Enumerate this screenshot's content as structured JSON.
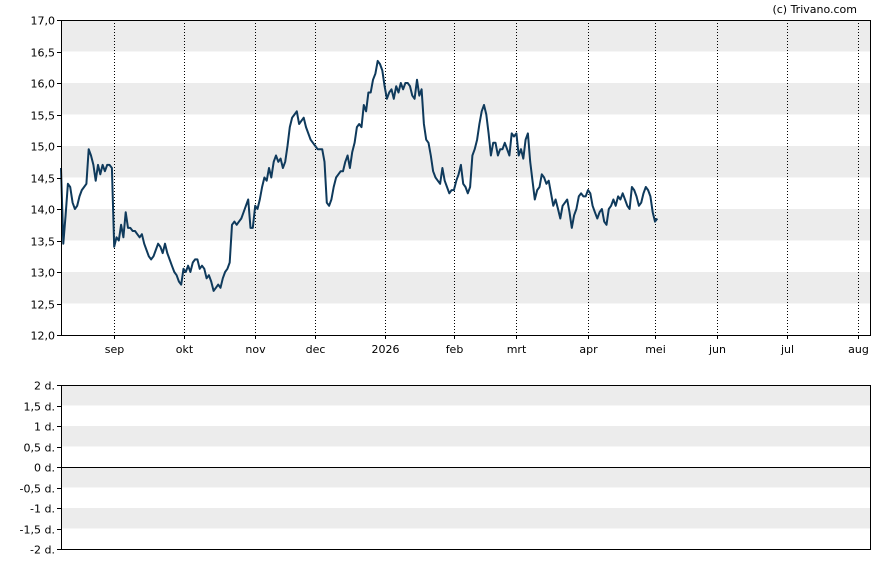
{
  "copyright": "(c) Trivano.com",
  "colors": {
    "line": "#0f3a5c",
    "band": "#ececec",
    "grid": "#000000",
    "axis": "#000000",
    "background": "#ffffff"
  },
  "chart_data": [
    {
      "type": "line",
      "title": "",
      "xlabel": "",
      "ylabel": "",
      "ylim": [
        12.0,
        17.0
      ],
      "y_ticks": [
        "12,0",
        "12,5",
        "13,0",
        "13,5",
        "14,0",
        "14,5",
        "15,0",
        "15,5",
        "16,0",
        "16,5",
        "17,0"
      ],
      "x_tick_labels": [
        "sep",
        "okt",
        "nov",
        "dec",
        "2026",
        "feb",
        "mrt",
        "apr",
        "mei",
        "jun",
        "jul",
        "aug"
      ],
      "x_tick_days": [
        23,
        53,
        84,
        110,
        140,
        170,
        197,
        228,
        257,
        284,
        314,
        345
      ],
      "x_range_days": [
        0,
        350
      ],
      "grid": "vertical dotted at month starts, alternating horizontal bands",
      "series": [
        {
          "points": [
            [
              0,
              14.65
            ],
            [
              1,
              13.45
            ],
            [
              2,
              13.9
            ],
            [
              3,
              14.4
            ],
            [
              4,
              14.35
            ],
            [
              5,
              14.1
            ],
            [
              6,
              14.0
            ],
            [
              7,
              14.05
            ],
            [
              8,
              14.2
            ],
            [
              9,
              14.3
            ],
            [
              10,
              14.35
            ],
            [
              11,
              14.4
            ],
            [
              12,
              14.95
            ],
            [
              13,
              14.85
            ],
            [
              14,
              14.7
            ],
            [
              15,
              14.45
            ],
            [
              16,
              14.7
            ],
            [
              17,
              14.55
            ],
            [
              18,
              14.7
            ],
            [
              19,
              14.6
            ],
            [
              20,
              14.7
            ],
            [
              21,
              14.7
            ],
            [
              22,
              14.65
            ],
            [
              23,
              13.4
            ],
            [
              24,
              13.55
            ],
            [
              25,
              13.5
            ],
            [
              26,
              13.75
            ],
            [
              27,
              13.55
            ],
            [
              28,
              13.95
            ],
            [
              29,
              13.7
            ],
            [
              30,
              13.7
            ],
            [
              31,
              13.65
            ],
            [
              32,
              13.65
            ],
            [
              33,
              13.6
            ],
            [
              34,
              13.55
            ],
            [
              35,
              13.6
            ],
            [
              36,
              13.45
            ],
            [
              37,
              13.35
            ],
            [
              38,
              13.25
            ],
            [
              39,
              13.2
            ],
            [
              40,
              13.25
            ],
            [
              41,
              13.35
            ],
            [
              42,
              13.45
            ],
            [
              43,
              13.4
            ],
            [
              44,
              13.3
            ],
            [
              45,
              13.45
            ],
            [
              46,
              13.3
            ],
            [
              47,
              13.2
            ],
            [
              48,
              13.1
            ],
            [
              49,
              13.0
            ],
            [
              50,
              12.95
            ],
            [
              51,
              12.85
            ],
            [
              52,
              12.8
            ],
            [
              53,
              13.05
            ],
            [
              54,
              13.0
            ],
            [
              55,
              13.1
            ],
            [
              56,
              13.0
            ],
            [
              57,
              13.15
            ],
            [
              58,
              13.2
            ],
            [
              59,
              13.2
            ],
            [
              60,
              13.05
            ],
            [
              61,
              13.1
            ],
            [
              62,
              13.05
            ],
            [
              63,
              12.9
            ],
            [
              64,
              12.95
            ],
            [
              65,
              12.85
            ],
            [
              66,
              12.7
            ],
            [
              67,
              12.75
            ],
            [
              68,
              12.8
            ],
            [
              69,
              12.75
            ],
            [
              70,
              12.9
            ],
            [
              71,
              13.0
            ],
            [
              72,
              13.05
            ],
            [
              73,
              13.15
            ],
            [
              74,
              13.75
            ],
            [
              75,
              13.8
            ],
            [
              76,
              13.75
            ],
            [
              77,
              13.8
            ],
            [
              78,
              13.85
            ],
            [
              79,
              13.95
            ],
            [
              80,
              14.05
            ],
            [
              81,
              14.15
            ],
            [
              82,
              13.7
            ],
            [
              83,
              13.7
            ],
            [
              84,
              14.05
            ],
            [
              85,
              14.0
            ],
            [
              86,
              14.15
            ],
            [
              87,
              14.35
            ],
            [
              88,
              14.5
            ],
            [
              89,
              14.45
            ],
            [
              90,
              14.65
            ],
            [
              91,
              14.5
            ],
            [
              92,
              14.75
            ],
            [
              93,
              14.85
            ],
            [
              94,
              14.75
            ],
            [
              95,
              14.8
            ],
            [
              96,
              14.65
            ],
            [
              97,
              14.75
            ],
            [
              98,
              15.0
            ],
            [
              99,
              15.3
            ],
            [
              100,
              15.45
            ],
            [
              101,
              15.5
            ],
            [
              102,
              15.55
            ],
            [
              103,
              15.35
            ],
            [
              104,
              15.4
            ],
            [
              105,
              15.45
            ],
            [
              106,
              15.3
            ],
            [
              107,
              15.2
            ],
            [
              108,
              15.1
            ],
            [
              109,
              15.05
            ],
            [
              110,
              15.0
            ],
            [
              111,
              14.95
            ],
            [
              112,
              14.95
            ],
            [
              113,
              14.95
            ],
            [
              114,
              14.75
            ],
            [
              115,
              14.1
            ],
            [
              116,
              14.05
            ],
            [
              117,
              14.15
            ],
            [
              118,
              14.35
            ],
            [
              119,
              14.5
            ],
            [
              120,
              14.55
            ],
            [
              121,
              14.6
            ],
            [
              122,
              14.6
            ],
            [
              123,
              14.75
            ],
            [
              124,
              14.85
            ],
            [
              125,
              14.65
            ],
            [
              126,
              14.9
            ],
            [
              127,
              15.05
            ],
            [
              128,
              15.3
            ],
            [
              129,
              15.35
            ],
            [
              130,
              15.3
            ],
            [
              131,
              15.65
            ],
            [
              132,
              15.55
            ],
            [
              133,
              15.85
            ],
            [
              134,
              15.85
            ],
            [
              135,
              16.05
            ],
            [
              136,
              16.15
            ],
            [
              137,
              16.35
            ],
            [
              138,
              16.3
            ],
            [
              139,
              16.2
            ],
            [
              140,
              15.95
            ],
            [
              141,
              15.75
            ],
            [
              142,
              15.85
            ],
            [
              143,
              15.9
            ],
            [
              144,
              15.75
            ],
            [
              145,
              15.95
            ],
            [
              146,
              15.85
            ],
            [
              147,
              16.0
            ],
            [
              148,
              15.9
            ],
            [
              149,
              16.0
            ],
            [
              150,
              16.0
            ],
            [
              151,
              15.95
            ],
            [
              152,
              15.8
            ],
            [
              153,
              15.75
            ],
            [
              154,
              16.05
            ],
            [
              155,
              15.8
            ],
            [
              156,
              15.9
            ],
            [
              157,
              15.35
            ],
            [
              158,
              15.1
            ],
            [
              159,
              15.05
            ],
            [
              160,
              14.85
            ],
            [
              161,
              14.6
            ],
            [
              162,
              14.5
            ],
            [
              163,
              14.45
            ],
            [
              164,
              14.4
            ],
            [
              165,
              14.65
            ],
            [
              166,
              14.45
            ],
            [
              167,
              14.35
            ],
            [
              168,
              14.25
            ],
            [
              169,
              14.3
            ],
            [
              170,
              14.3
            ],
            [
              171,
              14.45
            ],
            [
              172,
              14.55
            ],
            [
              173,
              14.7
            ],
            [
              174,
              14.4
            ],
            [
              175,
              14.35
            ],
            [
              176,
              14.25
            ],
            [
              177,
              14.35
            ],
            [
              178,
              14.85
            ],
            [
              179,
              14.95
            ],
            [
              180,
              15.1
            ],
            [
              181,
              15.35
            ],
            [
              182,
              15.55
            ],
            [
              183,
              15.65
            ],
            [
              184,
              15.5
            ],
            [
              185,
              15.2
            ],
            [
              186,
              14.85
            ],
            [
              187,
              15.05
            ],
            [
              188,
              15.05
            ],
            [
              189,
              14.85
            ],
            [
              190,
              14.95
            ],
            [
              191,
              14.95
            ],
            [
              192,
              15.05
            ],
            [
              193,
              14.95
            ],
            [
              194,
              14.85
            ],
            [
              195,
              15.2
            ],
            [
              196,
              15.15
            ],
            [
              197,
              15.2
            ],
            [
              198,
              14.85
            ],
            [
              199,
              14.95
            ],
            [
              200,
              14.8
            ],
            [
              201,
              15.1
            ],
            [
              202,
              15.2
            ],
            [
              203,
              14.75
            ],
            [
              204,
              14.45
            ],
            [
              205,
              14.15
            ],
            [
              206,
              14.3
            ],
            [
              207,
              14.35
            ],
            [
              208,
              14.55
            ],
            [
              209,
              14.5
            ],
            [
              210,
              14.4
            ],
            [
              211,
              14.45
            ],
            [
              212,
              14.25
            ],
            [
              213,
              14.05
            ],
            [
              214,
              14.15
            ],
            [
              215,
              14.0
            ],
            [
              216,
              13.85
            ],
            [
              217,
              14.05
            ],
            [
              218,
              14.1
            ],
            [
              219,
              14.15
            ],
            [
              220,
              13.95
            ],
            [
              221,
              13.7
            ],
            [
              222,
              13.9
            ],
            [
              223,
              14.0
            ],
            [
              224,
              14.2
            ],
            [
              225,
              14.25
            ],
            [
              226,
              14.2
            ],
            [
              227,
              14.2
            ],
            [
              228,
              14.3
            ],
            [
              229,
              14.25
            ],
            [
              230,
              14.05
            ],
            [
              231,
              13.95
            ],
            [
              232,
              13.85
            ],
            [
              233,
              13.95
            ],
            [
              234,
              14.0
            ],
            [
              235,
              13.8
            ],
            [
              236,
              13.75
            ],
            [
              237,
              14.0
            ],
            [
              238,
              14.05
            ],
            [
              239,
              14.15
            ],
            [
              240,
              14.05
            ],
            [
              241,
              14.2
            ],
            [
              242,
              14.15
            ],
            [
              243,
              14.25
            ],
            [
              244,
              14.15
            ],
            [
              245,
              14.05
            ],
            [
              246,
              14.0
            ],
            [
              247,
              14.35
            ],
            [
              248,
              14.3
            ],
            [
              249,
              14.2
            ],
            [
              250,
              14.05
            ],
            [
              251,
              14.1
            ],
            [
              252,
              14.25
            ],
            [
              253,
              14.35
            ],
            [
              254,
              14.3
            ],
            [
              255,
              14.2
            ],
            [
              256,
              13.95
            ],
            [
              257,
              13.8
            ],
            [
              258,
              13.85
            ]
          ]
        }
      ]
    },
    {
      "type": "line",
      "title": "",
      "xlabel": "",
      "ylabel": "",
      "ylim": [
        -2,
        2
      ],
      "y_ticks": [
        "-2 d.",
        "-1,5 d.",
        "-1 d.",
        "-0,5 d.",
        "0 d.",
        "0,5 d.",
        "1 d.",
        "1,5 d.",
        "2 d."
      ],
      "reference_line": 0,
      "series": []
    }
  ]
}
